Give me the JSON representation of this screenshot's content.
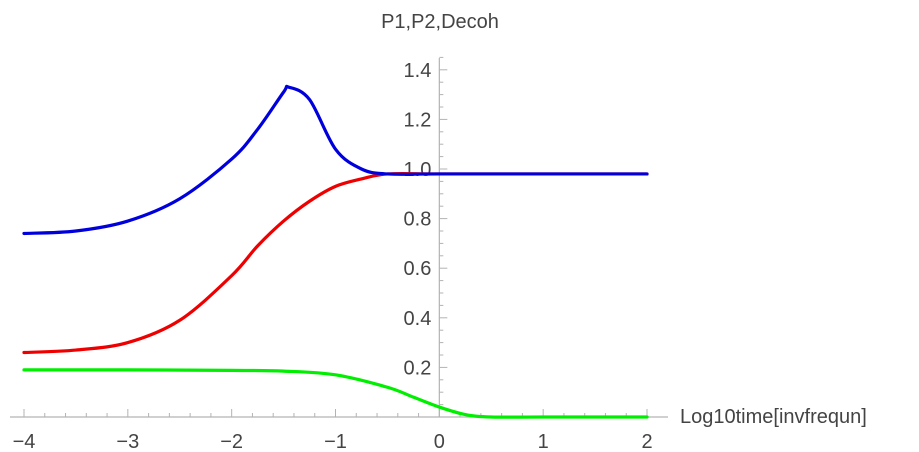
{
  "chart_data": {
    "type": "line",
    "ylabel": "P1,P2,Decoh",
    "xlabel": "Log10time[invfrequn]",
    "xlim": [
      -4,
      2
    ],
    "ylim": [
      0,
      1.5
    ],
    "x_ticks": [
      {
        "v": -4,
        "label": "−4"
      },
      {
        "v": -3,
        "label": "−3"
      },
      {
        "v": -2,
        "label": "−2"
      },
      {
        "v": -1,
        "label": "−1"
      },
      {
        "v": 0,
        "label": "0"
      },
      {
        "v": 1,
        "label": "1"
      },
      {
        "v": 2,
        "label": "2"
      }
    ],
    "y_ticks": [
      {
        "v": 0.2,
        "label": "0.2"
      },
      {
        "v": 0.4,
        "label": "0.4"
      },
      {
        "v": 0.6,
        "label": "0.6"
      },
      {
        "v": 0.8,
        "label": "0.8"
      },
      {
        "v": 1.0,
        "label": "1.0"
      },
      {
        "v": 1.2,
        "label": "1.2"
      },
      {
        "v": 1.4,
        "label": "1.4"
      }
    ],
    "grid": false,
    "series": [
      {
        "color": "#0000dd",
        "points": [
          [
            -4,
            0.74
          ],
          [
            -3.5,
            0.75
          ],
          [
            -3,
            0.79
          ],
          [
            -2.5,
            0.88
          ],
          [
            -2,
            1.04
          ],
          [
            -1.75,
            1.16
          ],
          [
            -1.5,
            1.31
          ],
          [
            -1.45,
            1.33
          ],
          [
            -1.25,
            1.28
          ],
          [
            -1,
            1.08
          ],
          [
            -0.75,
            1.0
          ],
          [
            -0.5,
            0.98
          ],
          [
            0,
            0.98
          ],
          [
            1,
            0.98
          ],
          [
            2,
            0.98
          ]
        ]
      },
      {
        "color": "#ee0000",
        "points": [
          [
            -4,
            0.26
          ],
          [
            -3.5,
            0.27
          ],
          [
            -3,
            0.3
          ],
          [
            -2.5,
            0.39
          ],
          [
            -2,
            0.57
          ],
          [
            -1.75,
            0.69
          ],
          [
            -1.5,
            0.79
          ],
          [
            -1.25,
            0.87
          ],
          [
            -1,
            0.93
          ],
          [
            -0.75,
            0.96
          ],
          [
            -0.5,
            0.98
          ],
          [
            0,
            0.98
          ],
          [
            1,
            0.98
          ],
          [
            2,
            0.98
          ]
        ]
      },
      {
        "color": "#00ee00",
        "points": [
          [
            -4,
            0.19
          ],
          [
            -3,
            0.19
          ],
          [
            -2,
            0.188
          ],
          [
            -1.5,
            0.185
          ],
          [
            -1,
            0.17
          ],
          [
            -0.5,
            0.12
          ],
          [
            -0.25,
            0.08
          ],
          [
            0,
            0.04
          ],
          [
            0.25,
            0.01
          ],
          [
            0.5,
            0.0
          ],
          [
            1,
            0.0
          ],
          [
            2,
            0.0
          ]
        ]
      }
    ]
  }
}
